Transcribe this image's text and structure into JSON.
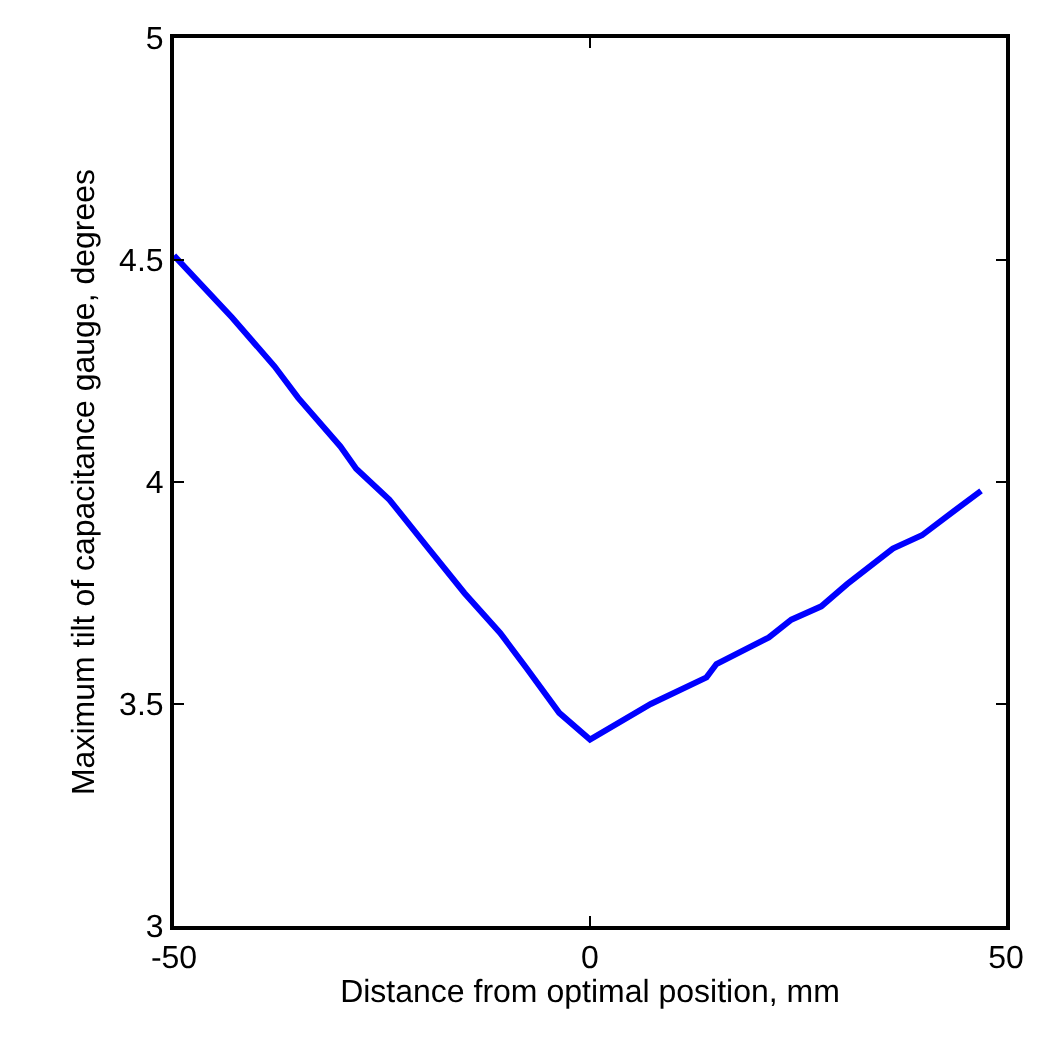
{
  "chart_data": {
    "type": "line",
    "xlabel": "Distance from optimal position, mm",
    "ylabel": "Maximum tilt of capacitance gauge, degrees",
    "x": [
      -50,
      -43.0,
      -37.9,
      -35.1,
      -30.0,
      -28.1,
      -24.1,
      -19.4,
      -15.1,
      -10.8,
      -7.6,
      -3.7,
      0,
      7.3,
      14.0,
      15.2,
      21.5,
      24.2,
      27.8,
      30.9,
      36.4,
      39.9,
      42.7,
      47.0
    ],
    "series": [
      {
        "color": "#0000ff",
        "values": [
          4.51,
          4.37,
          4.26,
          4.19,
          4.08,
          4.03,
          3.96,
          3.85,
          3.75,
          3.66,
          3.58,
          3.48,
          3.42,
          3.5,
          3.56,
          3.59,
          3.65,
          3.69,
          3.72,
          3.77,
          3.85,
          3.88,
          3.92,
          3.98
        ]
      }
    ],
    "xlim": [
      -50,
      50
    ],
    "xticks": [
      -50,
      0,
      50
    ],
    "ylim": [
      3,
      5
    ],
    "yticks": [
      3,
      3.5,
      4,
      4.5,
      5
    ],
    "marker": "none",
    "line_style": "solid"
  }
}
